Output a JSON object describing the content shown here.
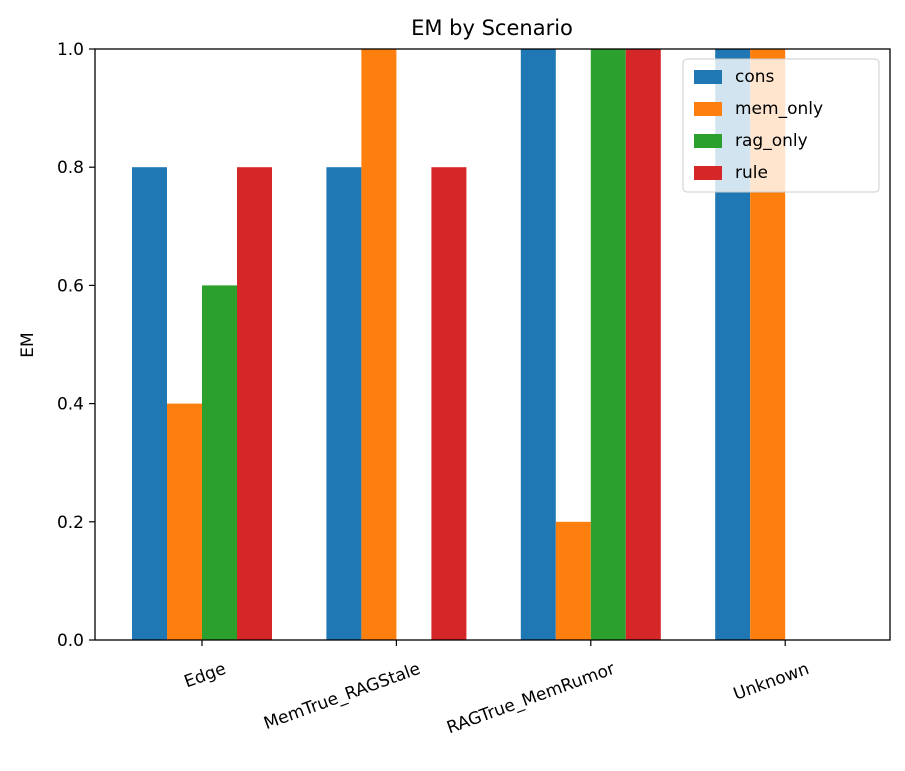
{
  "chart_data": {
    "type": "bar",
    "title": "EM by Scenario",
    "xlabel": "",
    "ylabel": "EM",
    "ylim": [
      0,
      1.0
    ],
    "yticks": [
      "0.0",
      "0.2",
      "0.4",
      "0.6",
      "0.8",
      "1.0"
    ],
    "categories": [
      "Edge",
      "MemTrue_RAGStale",
      "RAGTrue_MemRumor",
      "Unknown"
    ],
    "series": [
      {
        "name": "cons",
        "color": "#1f77b4",
        "values": [
          0.8,
          0.8,
          1.0,
          1.0
        ]
      },
      {
        "name": "mem_only",
        "color": "#ff7f0e",
        "values": [
          0.4,
          1.0,
          0.2,
          1.0
        ]
      },
      {
        "name": "rag_only",
        "color": "#2ca02c",
        "values": [
          0.6,
          0.0,
          1.0,
          0.0
        ]
      },
      {
        "name": "rule",
        "color": "#d62728",
        "values": [
          0.8,
          0.8,
          1.0,
          0.0
        ]
      }
    ],
    "grid": false,
    "legend_position": "top-right"
  }
}
